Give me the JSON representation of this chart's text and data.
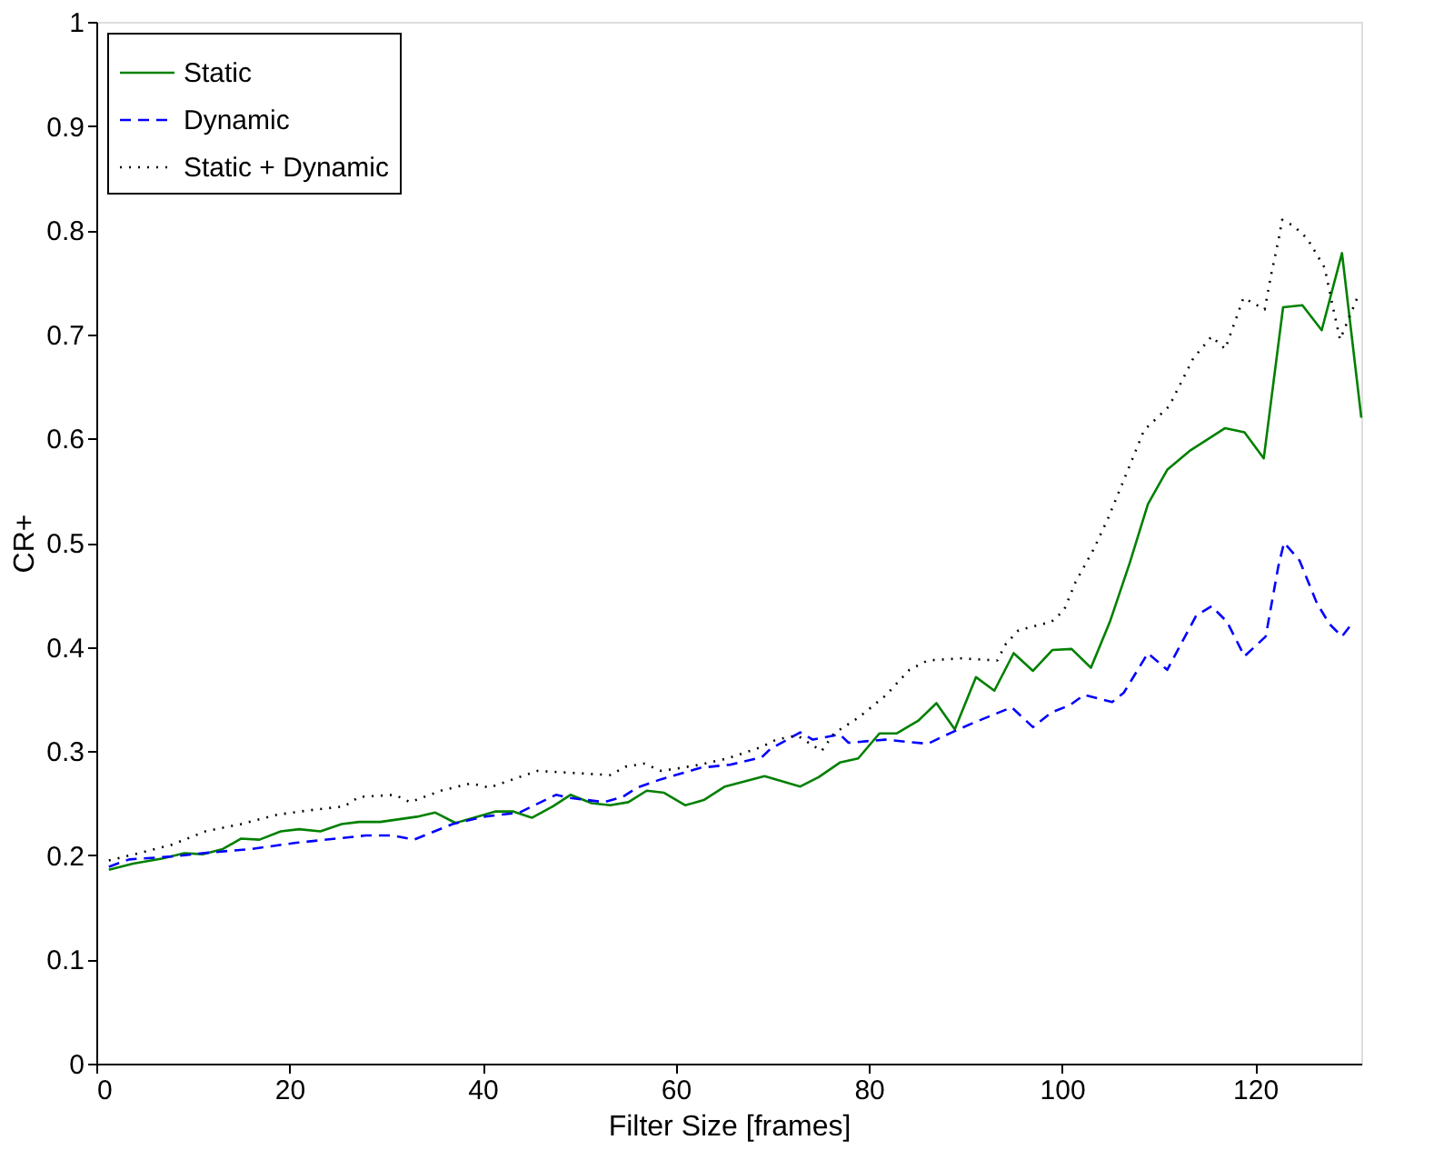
{
  "chart_data": {
    "type": "line",
    "xlabel": "Filter Size [frames]",
    "ylabel": "CR+",
    "xlim": [
      0,
      131
    ],
    "ylim": [
      0,
      1
    ],
    "xticks": [
      0,
      20,
      40,
      60,
      80,
      100,
      120
    ],
    "yticks": [
      0,
      0.1,
      0.2,
      0.3,
      0.4,
      0.5,
      0.6,
      0.7,
      0.8,
      0.9,
      1
    ],
    "grid": false,
    "legend": "top left",
    "marker": "none",
    "series": [
      {
        "name": "Static",
        "color": "#008000",
        "line_style": "solid",
        "x": [
          1.3,
          3.8,
          6.9,
          9.1,
          11,
          13.1,
          15,
          16.9,
          19.1,
          21,
          23.2,
          25.4,
          27.2,
          29.4,
          33.2,
          35.1,
          37.2,
          41.3,
          43.2,
          45.1,
          47.3,
          49.1,
          51.3,
          53.2,
          55.1,
          57,
          58.8,
          61,
          62.9,
          65.1,
          69.2,
          72.9,
          74.8,
          77,
          78.9,
          81.1,
          82.9,
          85.1,
          87,
          88.9,
          91.1,
          93,
          95,
          97,
          99,
          101,
          103,
          105,
          107,
          108.9,
          110.9,
          113.2,
          116.9,
          118.9,
          120.9,
          122.9,
          124.9,
          126.9,
          129,
          131
        ],
        "values": [
          0.186,
          0.192,
          0.197,
          0.202,
          0.201,
          0.206,
          0.216,
          0.215,
          0.223,
          0.225,
          0.223,
          0.23,
          0.232,
          0.232,
          0.237,
          0.241,
          0.231,
          0.242,
          0.242,
          0.236,
          0.247,
          0.258,
          0.25,
          0.248,
          0.251,
          0.262,
          0.26,
          0.248,
          0.253,
          0.266,
          0.276,
          0.266,
          0.275,
          0.289,
          0.293,
          0.317,
          0.317,
          0.329,
          0.346,
          0.321,
          0.371,
          0.358,
          0.394,
          0.377,
          0.397,
          0.398,
          0.38,
          0.425,
          0.48,
          0.537,
          0.57,
          0.588,
          0.61,
          0.606,
          0.581,
          0.726,
          0.728,
          0.704,
          0.778,
          0.62
        ]
      },
      {
        "name": "Dynamic",
        "color": "#0000ff",
        "line_style": "dashed",
        "x": [
          1.3,
          3.4,
          8.1,
          11,
          16,
          20.7,
          27.9,
          30.7,
          32.9,
          36.9,
          40.1,
          43.8,
          47.6,
          49.1,
          52.6,
          54.5,
          56,
          58.5,
          62.6,
          65.7,
          68.9,
          69.8,
          72.9,
          74.2,
          77,
          77.9,
          81.7,
          86.1,
          88.6,
          90.8,
          94.8,
          97,
          98.9,
          100.8,
          102.3,
          105.2,
          106.4,
          108.9,
          110.9,
          113.9,
          115.5,
          117.1,
          118.9,
          121.1,
          122.4,
          123,
          124.6,
          126.4,
          127.7,
          129,
          130
        ],
        "values": [
          0.189,
          0.196,
          0.199,
          0.202,
          0.206,
          0.212,
          0.219,
          0.219,
          0.215,
          0.23,
          0.237,
          0.241,
          0.258,
          0.255,
          0.251,
          0.256,
          0.265,
          0.273,
          0.284,
          0.287,
          0.294,
          0.302,
          0.318,
          0.311,
          0.316,
          0.308,
          0.311,
          0.307,
          0.318,
          0.327,
          0.342,
          0.323,
          0.337,
          0.344,
          0.354,
          0.347,
          0.356,
          0.394,
          0.378,
          0.43,
          0.439,
          0.424,
          0.391,
          0.41,
          0.477,
          0.5,
          0.483,
          0.442,
          0.422,
          0.41,
          0.422
        ]
      },
      {
        "name": "Static + Dynamic",
        "color": "#000000",
        "line_style": "dotted",
        "x": [
          1.3,
          4.4,
          7.8,
          11.3,
          15,
          18.8,
          21.9,
          25.7,
          27.2,
          30.9,
          32.5,
          35.7,
          38.8,
          40.7,
          44.1,
          45.7,
          49.4,
          53.2,
          54.8,
          56.7,
          58.5,
          62,
          65.4,
          68.9,
          70.4,
          72.6,
          75.1,
          76.4,
          78.9,
          81.7,
          84.2,
          86.1,
          89.5,
          93.3,
          94.2,
          95.5,
          98.9,
          100.2,
          101.4,
          103.3,
          104.8,
          106.4,
          108.5,
          111.1,
          113.6,
          115.5,
          116.9,
          118.8,
          121,
          121.7,
          122.5,
          122.8,
          124,
          125.4,
          127.2,
          128,
          128.8,
          130,
          130.8
        ],
        "values": [
          0.195,
          0.202,
          0.21,
          0.223,
          0.23,
          0.239,
          0.243,
          0.247,
          0.256,
          0.258,
          0.251,
          0.262,
          0.269,
          0.265,
          0.276,
          0.281,
          0.279,
          0.277,
          0.285,
          0.288,
          0.281,
          0.286,
          0.293,
          0.304,
          0.311,
          0.315,
          0.3,
          0.317,
          0.332,
          0.353,
          0.378,
          0.387,
          0.389,
          0.387,
          0.403,
          0.416,
          0.424,
          0.435,
          0.462,
          0.494,
          0.524,
          0.56,
          0.608,
          0.631,
          0.677,
          0.698,
          0.686,
          0.735,
          0.724,
          0.759,
          0.794,
          0.81,
          0.804,
          0.792,
          0.764,
          0.729,
          0.695,
          0.722,
          0.74
        ]
      }
    ]
  }
}
